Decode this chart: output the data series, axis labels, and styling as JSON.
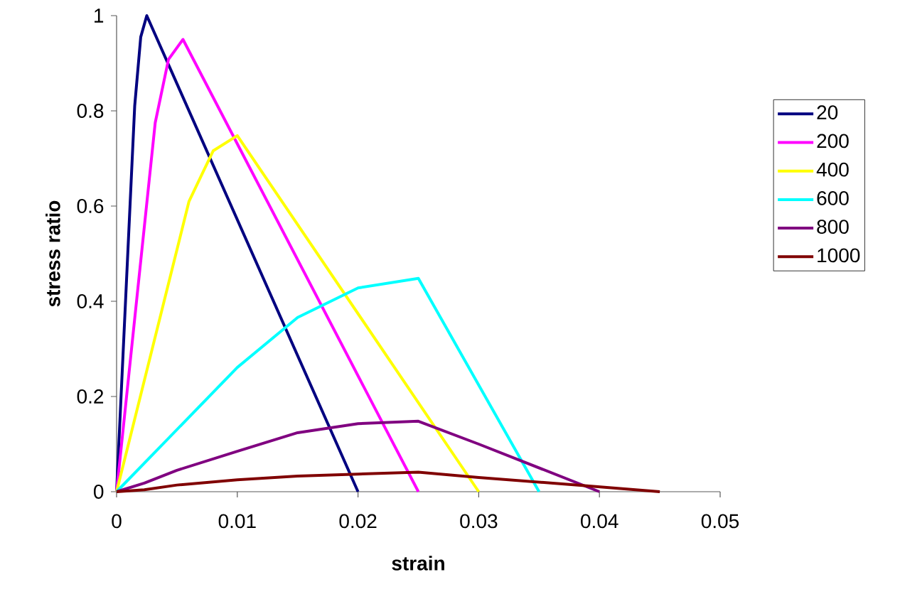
{
  "chart_data": {
    "type": "line",
    "xlabel": "strain",
    "ylabel": "stress ratio",
    "xlim": [
      0,
      0.05
    ],
    "xticks": [
      0,
      0.01,
      0.02,
      0.03,
      0.04,
      0.05
    ],
    "ylim": [
      0,
      1
    ],
    "yticks": [
      0,
      0.2,
      0.4,
      0.6,
      0.8,
      1
    ],
    "grid": false,
    "legend": "right",
    "marker": "none",
    "line_style": "solid",
    "series": [
      {
        "name": "20",
        "color": "#000080",
        "x": [
          0,
          0.0015,
          0.002,
          0.0025,
          0.02
        ],
        "values": [
          0,
          0.81,
          0.955,
          1.0,
          0
        ]
      },
      {
        "name": "200",
        "color": "#ff00ff",
        "x": [
          0,
          0.0032,
          0.0043,
          0.0055,
          0.025
        ],
        "values": [
          0,
          0.775,
          0.908,
          0.95,
          0
        ]
      },
      {
        "name": "400",
        "color": "#ffff00",
        "x": [
          0,
          0.006,
          0.008,
          0.01,
          0.03
        ],
        "values": [
          0,
          0.61,
          0.716,
          0.748,
          0
        ]
      },
      {
        "name": "600",
        "color": "#00ffff",
        "x": [
          0,
          0.01,
          0.015,
          0.02,
          0.025,
          0.035
        ],
        "values": [
          0,
          0.261,
          0.366,
          0.428,
          0.448,
          0
        ]
      },
      {
        "name": "800",
        "color": "#800080",
        "x": [
          0,
          0.0023,
          0.005,
          0.01,
          0.015,
          0.02,
          0.025,
          0.03,
          0.04
        ],
        "values": [
          0,
          0.018,
          0.045,
          0.085,
          0.124,
          0.143,
          0.148,
          0.1,
          0
        ]
      },
      {
        "name": "1000",
        "color": "#800000",
        "x": [
          0,
          0.0023,
          0.005,
          0.01,
          0.015,
          0.02,
          0.025,
          0.03,
          0.0386,
          0.045
        ],
        "values": [
          0,
          0.004,
          0.014,
          0.025,
          0.033,
          0.037,
          0.041,
          0.03,
          0.013,
          0
        ]
      }
    ]
  }
}
